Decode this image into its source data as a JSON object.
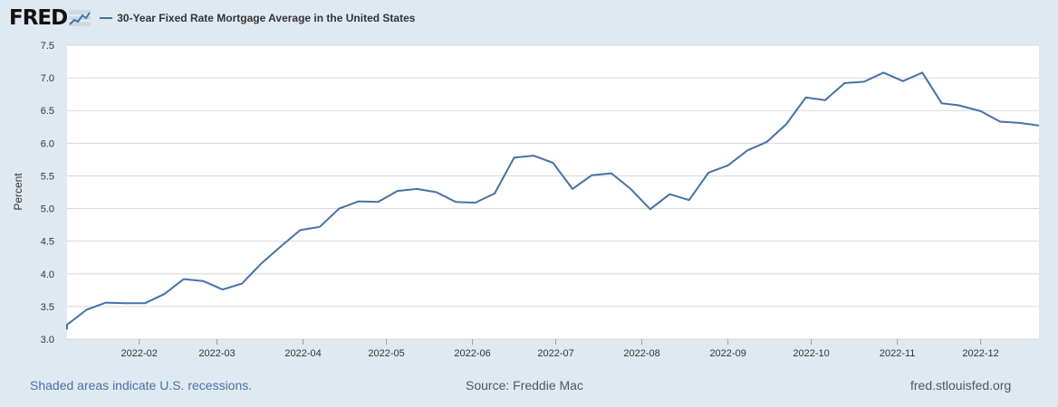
{
  "header": {
    "logo_text": "FRED",
    "legend_label": "30-Year Fixed Rate Mortgage Average in the United States"
  },
  "footer": {
    "recession_note": "Shaded areas indicate U.S. recessions.",
    "source": "Source: Freddie Mac",
    "site": "fred.stlouisfed.org"
  },
  "colors": {
    "series": "#4572a7",
    "background": "#e1e9f0",
    "plot": "#ffffff",
    "grid": "#d8d8d8"
  },
  "chart_data": {
    "type": "line",
    "ylabel": "Percent",
    "ylim": [
      3.0,
      7.5
    ],
    "yticks": [
      "3.0",
      "3.5",
      "4.0",
      "4.5",
      "5.0",
      "5.5",
      "6.0",
      "6.5",
      "7.0",
      "7.5"
    ],
    "xlim": [
      "2022-01-06",
      "2022-12-22"
    ],
    "xticks": [
      {
        "date": "2022-02-01",
        "label": "2022-02"
      },
      {
        "date": "2022-03-01",
        "label": "2022-03"
      },
      {
        "date": "2022-04-01",
        "label": "2022-04"
      },
      {
        "date": "2022-05-01",
        "label": "2022-05"
      },
      {
        "date": "2022-06-01",
        "label": "2022-06"
      },
      {
        "date": "2022-07-01",
        "label": "2022-07"
      },
      {
        "date": "2022-08-01",
        "label": "2022-08"
      },
      {
        "date": "2022-09-01",
        "label": "2022-09"
      },
      {
        "date": "2022-10-01",
        "label": "2022-10"
      },
      {
        "date": "2022-11-01",
        "label": "2022-11"
      },
      {
        "date": "2022-12-01",
        "label": "2022-12"
      }
    ],
    "grid": true,
    "series": [
      {
        "name": "30-Year Fixed Rate Mortgage Average in the United States",
        "x": [
          "2022-01-06",
          "2022-01-13",
          "2022-01-20",
          "2022-01-27",
          "2022-02-03",
          "2022-02-10",
          "2022-02-17",
          "2022-02-24",
          "2022-03-03",
          "2022-03-10",
          "2022-03-17",
          "2022-03-24",
          "2022-03-31",
          "2022-04-07",
          "2022-04-14",
          "2022-04-21",
          "2022-04-28",
          "2022-05-05",
          "2022-05-12",
          "2022-05-19",
          "2022-05-26",
          "2022-06-02",
          "2022-06-09",
          "2022-06-16",
          "2022-06-23",
          "2022-06-30",
          "2022-07-07",
          "2022-07-14",
          "2022-07-21",
          "2022-07-28",
          "2022-08-04",
          "2022-08-11",
          "2022-08-18",
          "2022-08-25",
          "2022-09-01",
          "2022-09-08",
          "2022-09-15",
          "2022-09-22",
          "2022-09-29",
          "2022-10-06",
          "2022-10-13",
          "2022-10-20",
          "2022-10-27",
          "2022-11-03",
          "2022-11-10",
          "2022-11-17",
          "2022-11-23",
          "2022-12-01",
          "2022-12-08",
          "2022-12-15",
          "2022-12-22"
        ],
        "values": [
          3.22,
          3.45,
          3.56,
          3.55,
          3.55,
          3.69,
          3.92,
          3.89,
          3.76,
          3.85,
          4.16,
          4.42,
          4.67,
          4.72,
          5.0,
          5.11,
          5.1,
          5.27,
          5.3,
          5.25,
          5.1,
          5.09,
          5.23,
          5.78,
          5.81,
          5.7,
          5.3,
          5.51,
          5.54,
          5.3,
          4.99,
          5.22,
          5.13,
          5.55,
          5.66,
          5.89,
          6.02,
          6.29,
          6.7,
          6.66,
          6.92,
          6.94,
          7.08,
          6.95,
          7.08,
          6.61,
          6.58,
          6.49,
          6.33,
          6.31,
          6.27
        ]
      }
    ]
  }
}
